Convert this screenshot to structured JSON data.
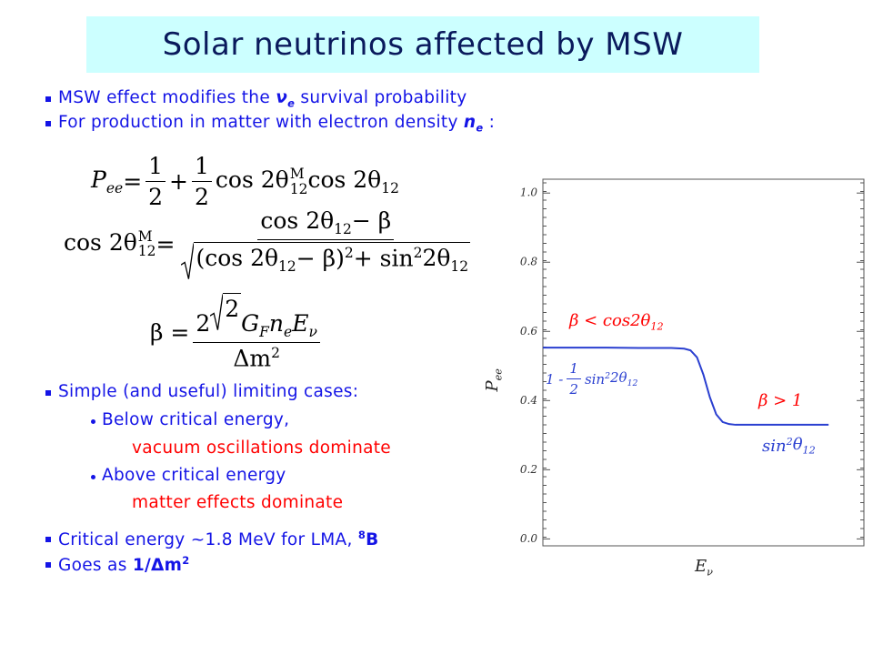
{
  "title": "Solar neutrinos affected by MSW",
  "text_color": "#1414e6",
  "bullets": [
    {
      "level": 1,
      "runs": [
        {
          "t": "MSW effect modifies the "
        },
        {
          "t": "ν",
          "sub": "e",
          "b": true,
          "i": true
        },
        {
          "t": " survival probability"
        }
      ]
    },
    {
      "level": 1,
      "runs": [
        {
          "t": "For production in matter with electron density "
        },
        {
          "t": "n",
          "sub": "e",
          "b": true,
          "i": true
        },
        {
          "t": " :"
        }
      ]
    },
    {
      "level": 1,
      "runs": [
        {
          "t": "Simple (and useful) limiting cases:"
        }
      ]
    },
    {
      "level": 2,
      "runs": [
        {
          "t": "Below critical energy,"
        }
      ]
    },
    {
      "level": 3,
      "color": "#ff0000",
      "runs": [
        {
          "t": "vacuum oscillations dominate"
        }
      ]
    },
    {
      "level": 2,
      "runs": [
        {
          "t": "Above critical energy"
        }
      ]
    },
    {
      "level": 3,
      "color": "#ff0000",
      "runs": [
        {
          "t": "matter effects dominate"
        }
      ]
    },
    {
      "level": 1,
      "runs": [
        {
          "t": "Critical energy ~1.8 MeV for LMA, "
        },
        {
          "sup": "8",
          "b": true
        },
        {
          "t": "B",
          "b": true
        }
      ]
    },
    {
      "level": 1,
      "runs": [
        {
          "t": "Goes as "
        },
        {
          "t": "1/Δm",
          "sup": "2",
          "b": true
        }
      ]
    }
  ],
  "equations": [
    [
      {
        "t": "P",
        "i": true,
        "sub": "ee"
      },
      {
        "t": " = "
      },
      {
        "frac": [
          [
            {
              "t": "1"
            }
          ],
          [
            {
              "t": "2"
            }
          ]
        ]
      },
      {
        "t": " + "
      },
      {
        "frac": [
          [
            {
              "t": "1"
            }
          ],
          [
            {
              "t": "2"
            }
          ]
        ]
      },
      {
        "t": " cos 2θ",
        "sub": "12",
        "sup": "M"
      },
      {
        "t": " cos 2θ",
        "sub": "12"
      }
    ],
    [
      {
        "t": "cos 2θ",
        "sub": "12",
        "sup": "M"
      },
      {
        "t": " = "
      },
      {
        "frac": [
          [
            {
              "t": "cos 2θ",
              "sub": "12"
            },
            {
              "t": " − β"
            }
          ],
          [
            {
              "sqrt": [
                {
                  "t": "(cos 2θ",
                  "sub": "12"
                },
                {
                  "t": " − β)",
                  "sup": "2"
                },
                {
                  "t": " + sin",
                  "sup": "2"
                },
                {
                  "t": " 2θ",
                  "sub": "12"
                }
              ]
            }
          ]
        ]
      }
    ],
    [
      {
        "t": "β = "
      },
      {
        "frac": [
          [
            {
              "t": "2"
            },
            {
              "sqrt": [
                {
                  "t": "2"
                }
              ]
            },
            {
              "t": "G",
              "i": true,
              "sub": "F"
            },
            {
              "t": "n",
              "i": true,
              "sub": "e"
            },
            {
              "t": "E",
              "i": true,
              "sub": "ν"
            }
          ],
          [
            {
              "t": "Δm",
              "sup": "2"
            }
          ]
        ]
      }
    ]
  ],
  "chart_data": {
    "type": "line",
    "x_label": [
      {
        "t": "E",
        "sub": "ν"
      }
    ],
    "y_label": [
      {
        "t": "P",
        "sub": "ee"
      }
    ],
    "x": [
      0,
      0.1,
      0.2,
      0.3,
      0.4,
      0.44,
      0.46,
      0.48,
      0.5,
      0.52,
      0.54,
      0.56,
      0.58,
      0.6,
      0.7,
      0.8,
      0.89
    ],
    "series": [
      {
        "color": "#2a3fd0",
        "values": [
          0.553,
          0.553,
          0.553,
          0.552,
          0.552,
          0.55,
          0.545,
          0.525,
          0.475,
          0.41,
          0.36,
          0.338,
          0.332,
          0.33,
          0.33,
          0.33,
          0.33
        ]
      }
    ],
    "xlim": [
      0,
      1
    ],
    "ylim": [
      -0.02,
      1.04
    ],
    "yticks": [
      {
        "value": 0,
        "label": "0.0"
      },
      0.2,
      0.4,
      0.6,
      0.8,
      {
        "value": 1,
        "label": "1.0"
      }
    ],
    "annotations": [
      {
        "color": "#ff0000",
        "runs": [
          {
            "t": "β < cos2θ",
            "sub": "12"
          }
        ]
      },
      {
        "color": "#2a3fd0",
        "runs": [
          {
            "t": "1 - "
          },
          {
            "frac": [
              [
                {
                  "t": "1"
                }
              ],
              [
                {
                  "t": "2"
                }
              ]
            ]
          },
          {
            "t": " sin",
            "sup": "2"
          },
          {
            "t": "2θ",
            "sub": "12"
          }
        ]
      },
      {
        "color": "#ff0000",
        "runs": [
          {
            "t": "β > 1"
          }
        ]
      },
      {
        "color": "#2a3fd0",
        "runs": [
          {
            "t": "sin",
            "sup": "2"
          },
          {
            "t": "θ",
            "sub": "12"
          }
        ]
      }
    ]
  }
}
